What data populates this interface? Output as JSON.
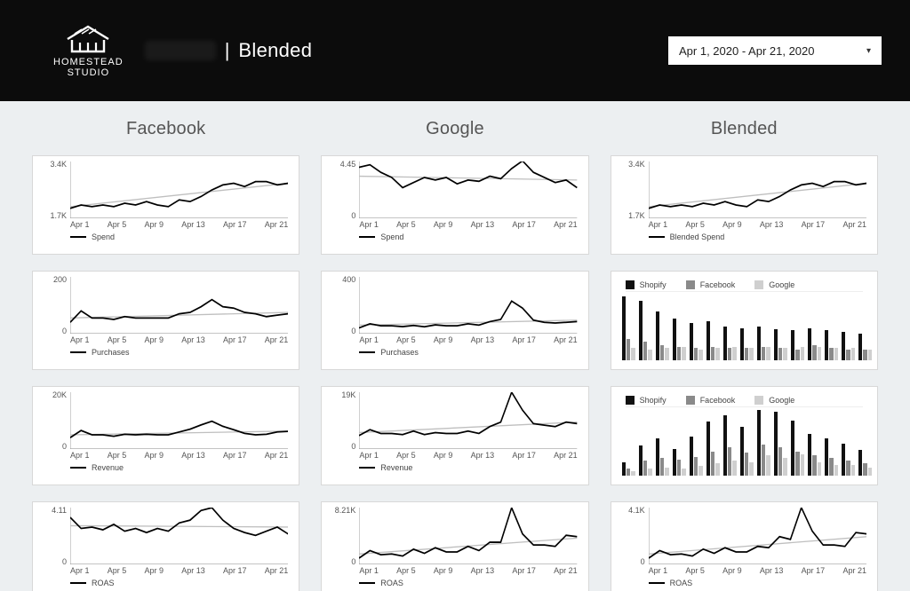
{
  "header": {
    "brand_top": "HOMESTEAD",
    "brand_bottom": "STUDIO",
    "title_separator": "|",
    "title": "Blended",
    "date_range": "Apr 1, 2020 - Apr 21, 2020"
  },
  "columns": [
    "Facebook",
    "Google",
    "Blended"
  ],
  "shared": {
    "x_categories": [
      "Apr 1",
      "Apr 5",
      "Apr 9",
      "Apr 13",
      "Apr 17",
      "Apr 21"
    ],
    "line_color": "#000000",
    "trend_color": "#bfbfbf",
    "grid_color": "#e8e8e8",
    "bg": "#ffffff",
    "label_fontsize": 9
  },
  "line_charts": {
    "fb_spend": {
      "type": "line",
      "legend": "Spend",
      "yticks": [
        "1.7K",
        "3.4K"
      ],
      "ylim": [
        1700,
        3400
      ],
      "values": [
        2000,
        2100,
        2050,
        2100,
        2050,
        2150,
        2100,
        2200,
        2100,
        2050,
        2250,
        2200,
        2350,
        2550,
        2700,
        2750,
        2650,
        2800,
        2800,
        2700,
        2750
      ],
      "trend": [
        2050,
        2750
      ]
    },
    "fb_purchases": {
      "type": "line",
      "legend": "Purchases",
      "yticks": [
        "0",
        "200"
      ],
      "ylim": [
        0,
        200
      ],
      "values": [
        40,
        80,
        55,
        55,
        50,
        60,
        55,
        55,
        55,
        55,
        70,
        75,
        95,
        120,
        95,
        90,
        75,
        70,
        60,
        65,
        70
      ],
      "trend": [
        55,
        75
      ]
    },
    "fb_revenue": {
      "type": "line",
      "legend": "Revenue",
      "yticks": [
        "0",
        "20K"
      ],
      "ylim": [
        0,
        20000
      ],
      "values": [
        4000,
        6500,
        5000,
        5000,
        4500,
        5200,
        5000,
        5200,
        5000,
        5000,
        6000,
        7000,
        8500,
        9800,
        8000,
        6800,
        5500,
        5000,
        5200,
        6000,
        6200
      ],
      "trend": [
        5000,
        6300
      ]
    },
    "fb_roas": {
      "type": "line",
      "legend": "ROAS",
      "yticks": [
        "0",
        "4.11"
      ],
      "ylim": [
        0,
        4.11
      ],
      "values": [
        3.4,
        2.6,
        2.7,
        2.5,
        2.9,
        2.4,
        2.6,
        2.3,
        2.6,
        2.4,
        3.0,
        3.2,
        3.9,
        4.1,
        3.2,
        2.6,
        2.3,
        2.1,
        2.4,
        2.7,
        2.2
      ],
      "trend": [
        2.8,
        2.7
      ]
    },
    "gg_spend": {
      "type": "line",
      "legend": "Spend",
      "yticks": [
        "0",
        "4.45"
      ],
      "ylim": [
        0,
        4.45
      ],
      "values": [
        4.0,
        4.2,
        3.6,
        3.2,
        2.4,
        2.8,
        3.2,
        3.0,
        3.2,
        2.7,
        3.0,
        2.9,
        3.3,
        3.1,
        3.9,
        4.5,
        3.6,
        3.2,
        2.8,
        3.0,
        2.4
      ],
      "trend": [
        3.3,
        3.0
      ]
    },
    "gg_purchases": {
      "type": "line",
      "legend": "Purchases",
      "yticks": [
        "0",
        "400"
      ],
      "ylim": [
        0,
        400
      ],
      "values": [
        40,
        70,
        55,
        55,
        50,
        58,
        48,
        62,
        55,
        55,
        70,
        60,
        85,
        100,
        230,
        180,
        95,
        80,
        75,
        80,
        85
      ],
      "trend": [
        60,
        95
      ]
    },
    "gg_revenue": {
      "type": "line",
      "legend": "Revenue",
      "yticks": [
        "0",
        "19K"
      ],
      "ylim": [
        0,
        19000
      ],
      "values": [
        4500,
        6500,
        5200,
        5200,
        4800,
        6000,
        4800,
        5500,
        5200,
        5200,
        6000,
        5200,
        7500,
        9000,
        19000,
        13000,
        8500,
        8000,
        7500,
        9000,
        8500
      ],
      "trend": [
        5500,
        9000
      ]
    },
    "gg_roas": {
      "type": "line",
      "legend": "ROAS",
      "yticks": [
        "0",
        "8.21K"
      ],
      "ylim": [
        0,
        8210
      ],
      "values": [
        900,
        2000,
        1400,
        1500,
        1200,
        2200,
        1600,
        2400,
        1800,
        1800,
        2600,
        2000,
        3200,
        3200,
        8200,
        4400,
        2800,
        2800,
        2600,
        4200,
        4000
      ],
      "trend": [
        1500,
        3800
      ]
    },
    "bl_spend": {
      "type": "line",
      "legend": "Blended Spend",
      "yticks": [
        "1.7K",
        "3.4K"
      ],
      "ylim": [
        1700,
        3400
      ],
      "values": [
        2000,
        2100,
        2050,
        2100,
        2050,
        2150,
        2100,
        2200,
        2100,
        2050,
        2250,
        2200,
        2350,
        2550,
        2700,
        2750,
        2650,
        2800,
        2800,
        2700,
        2750
      ],
      "trend": [
        2050,
        2750
      ]
    },
    "bl_roas": {
      "type": "line",
      "legend": "ROAS",
      "yticks": [
        "0",
        "4.1K"
      ],
      "ylim": [
        0,
        4100
      ],
      "values": [
        450,
        1000,
        700,
        750,
        600,
        1100,
        800,
        1200,
        900,
        900,
        1300,
        1200,
        2000,
        1800,
        4100,
        2400,
        1400,
        1400,
        1300,
        2300,
        2200
      ],
      "trend": [
        750,
        2000
      ]
    }
  },
  "bar_charts": {
    "bl_purchases": {
      "type": "grouped-bar",
      "series_labels": [
        "Shopify",
        "Facebook",
        "Google"
      ],
      "series_colors": [
        "#111111",
        "#8a8a8a",
        "#cfcfcf"
      ],
      "ylim": [
        0,
        100
      ],
      "groups": [
        [
          95,
          32,
          18
        ],
        [
          88,
          28,
          16
        ],
        [
          72,
          22,
          18
        ],
        [
          62,
          20,
          20
        ],
        [
          55,
          18,
          16
        ],
        [
          58,
          20,
          18
        ],
        [
          50,
          18,
          20
        ],
        [
          48,
          18,
          18
        ],
        [
          50,
          20,
          20
        ],
        [
          46,
          18,
          18
        ],
        [
          45,
          16,
          20
        ],
        [
          48,
          22,
          20
        ],
        [
          45,
          18,
          18
        ],
        [
          42,
          16,
          18
        ],
        [
          40,
          16,
          16
        ]
      ]
    },
    "bl_revenue": {
      "type": "grouped-bar",
      "series_labels": [
        "Shopify",
        "Facebook",
        "Google"
      ],
      "series_colors": [
        "#111111",
        "#8a8a8a",
        "#cfcfcf"
      ],
      "ylim": [
        0,
        100
      ],
      "groups": [
        [
          20,
          10,
          6
        ],
        [
          45,
          22,
          10
        ],
        [
          55,
          26,
          12
        ],
        [
          40,
          24,
          10
        ],
        [
          58,
          28,
          14
        ],
        [
          80,
          36,
          18
        ],
        [
          90,
          42,
          22
        ],
        [
          72,
          34,
          20
        ],
        [
          98,
          46,
          30
        ],
        [
          95,
          42,
          26
        ],
        [
          82,
          36,
          32
        ],
        [
          62,
          30,
          20
        ],
        [
          55,
          26,
          16
        ],
        [
          48,
          22,
          16
        ],
        [
          38,
          18,
          12
        ]
      ]
    }
  }
}
